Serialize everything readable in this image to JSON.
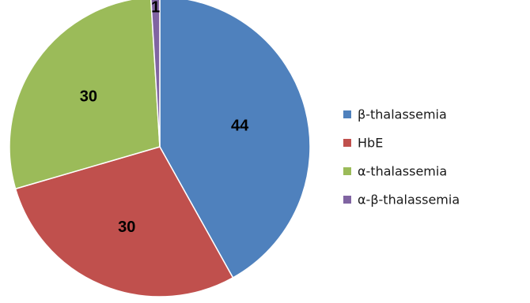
{
  "chart_data": {
    "type": "pie",
    "categories": [
      "β-thalassemia",
      "HbE",
      "α-thalassemia",
      "α-β-thalassemia"
    ],
    "values": [
      44,
      30,
      30,
      1
    ],
    "colors": [
      "#4F81BD",
      "#C0504D",
      "#9BBB59",
      "#8064A2"
    ],
    "data_labels": [
      "44",
      "30",
      "30",
      "1"
    ],
    "legend_position": "right",
    "start_angle": "12 o'clock",
    "direction": "clockwise"
  }
}
